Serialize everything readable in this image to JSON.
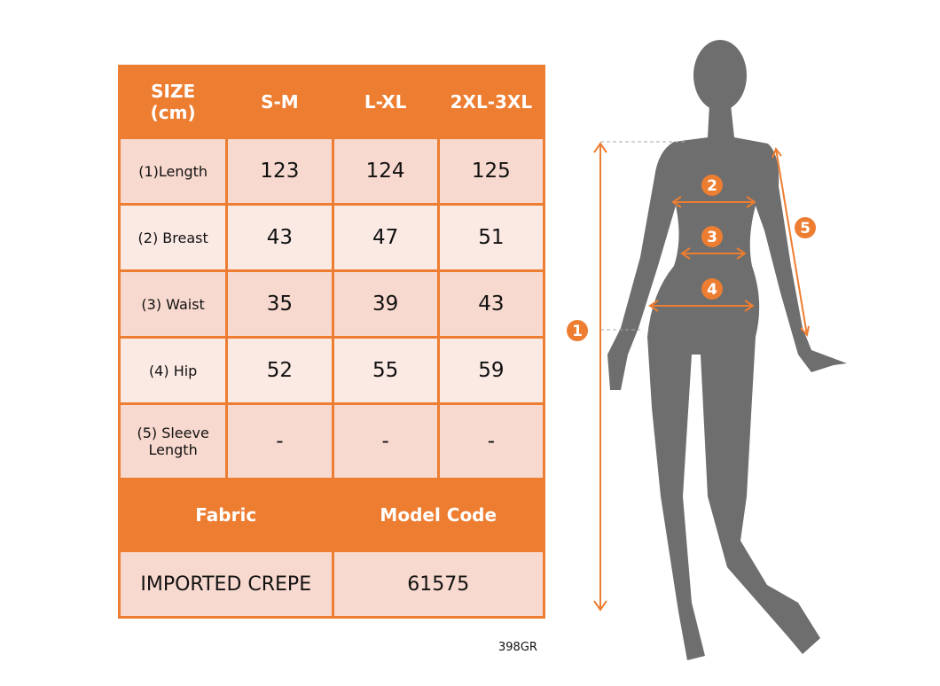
{
  "header": {
    "size_label_1": "SIZE",
    "size_label_2": "(cm)",
    "sizes": [
      "S-M",
      "L-XL",
      "2XL-3XL"
    ]
  },
  "rows": [
    {
      "label": "(1)Length",
      "values": [
        "123",
        "124",
        "125"
      ]
    },
    {
      "label": "(2) Breast",
      "values": [
        "43",
        "47",
        "51"
      ]
    },
    {
      "label": "(3) Waist",
      "values": [
        "35",
        "39",
        "43"
      ]
    },
    {
      "label": "(4) Hip",
      "values": [
        "52",
        "55",
        "59"
      ]
    },
    {
      "label_1": "(5) Sleeve",
      "label_2": "Length",
      "values": [
        "-",
        "-",
        "-"
      ]
    }
  ],
  "footer": {
    "fabric_label": "Fabric",
    "model_code_label": "Model Code",
    "fabric": "IMPORTED CREPE",
    "model_code": "61575"
  },
  "product_code": "398GR",
  "markers": [
    "1",
    "2",
    "3",
    "4",
    "5"
  ],
  "colors": {
    "accent": "#ed7d31",
    "row_dark": "#f8d9cf",
    "row_light": "#fbe9e4",
    "silhouette": "#6e6e6e"
  }
}
